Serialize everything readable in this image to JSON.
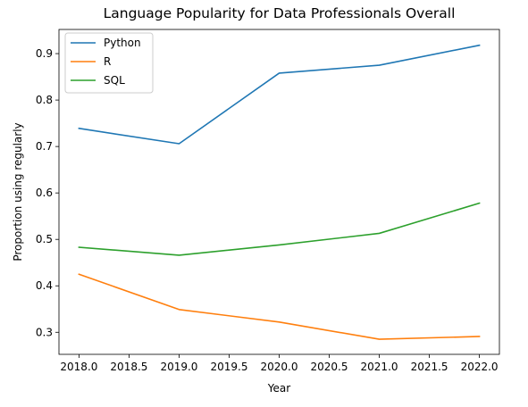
{
  "chart_data": {
    "type": "line",
    "title": "Language Popularity for Data Professionals Overall",
    "xlabel": "Year",
    "ylabel": "Proportion using regularly",
    "x": [
      2018,
      2019,
      2020,
      2021,
      2022
    ],
    "xlim": [
      2017.8,
      2022.2
    ],
    "ylim": [
      0.2525,
      0.952
    ],
    "xticks": [
      2018.0,
      2018.5,
      2019.0,
      2019.5,
      2020.0,
      2020.5,
      2021.0,
      2021.5,
      2022.0
    ],
    "xtick_labels": [
      "2018.0",
      "2018.5",
      "2019.0",
      "2019.5",
      "2020.0",
      "2020.5",
      "2021.0",
      "2021.5",
      "2022.0"
    ],
    "yticks": [
      0.3,
      0.4,
      0.5,
      0.6,
      0.7,
      0.8,
      0.9
    ],
    "ytick_labels": [
      "0.3",
      "0.4",
      "0.5",
      "0.6",
      "0.7",
      "0.8",
      "0.9"
    ],
    "grid": false,
    "legend_position": "top-left",
    "series": [
      {
        "name": "Python",
        "color": "#1f77b4",
        "values": [
          0.739,
          0.706,
          0.858,
          0.875,
          0.918
        ]
      },
      {
        "name": "R",
        "color": "#ff7f0e",
        "values": [
          0.425,
          0.349,
          0.322,
          0.285,
          0.291
        ]
      },
      {
        "name": "SQL",
        "color": "#2ca02c",
        "values": [
          0.483,
          0.466,
          0.488,
          0.513,
          0.578
        ]
      }
    ]
  }
}
